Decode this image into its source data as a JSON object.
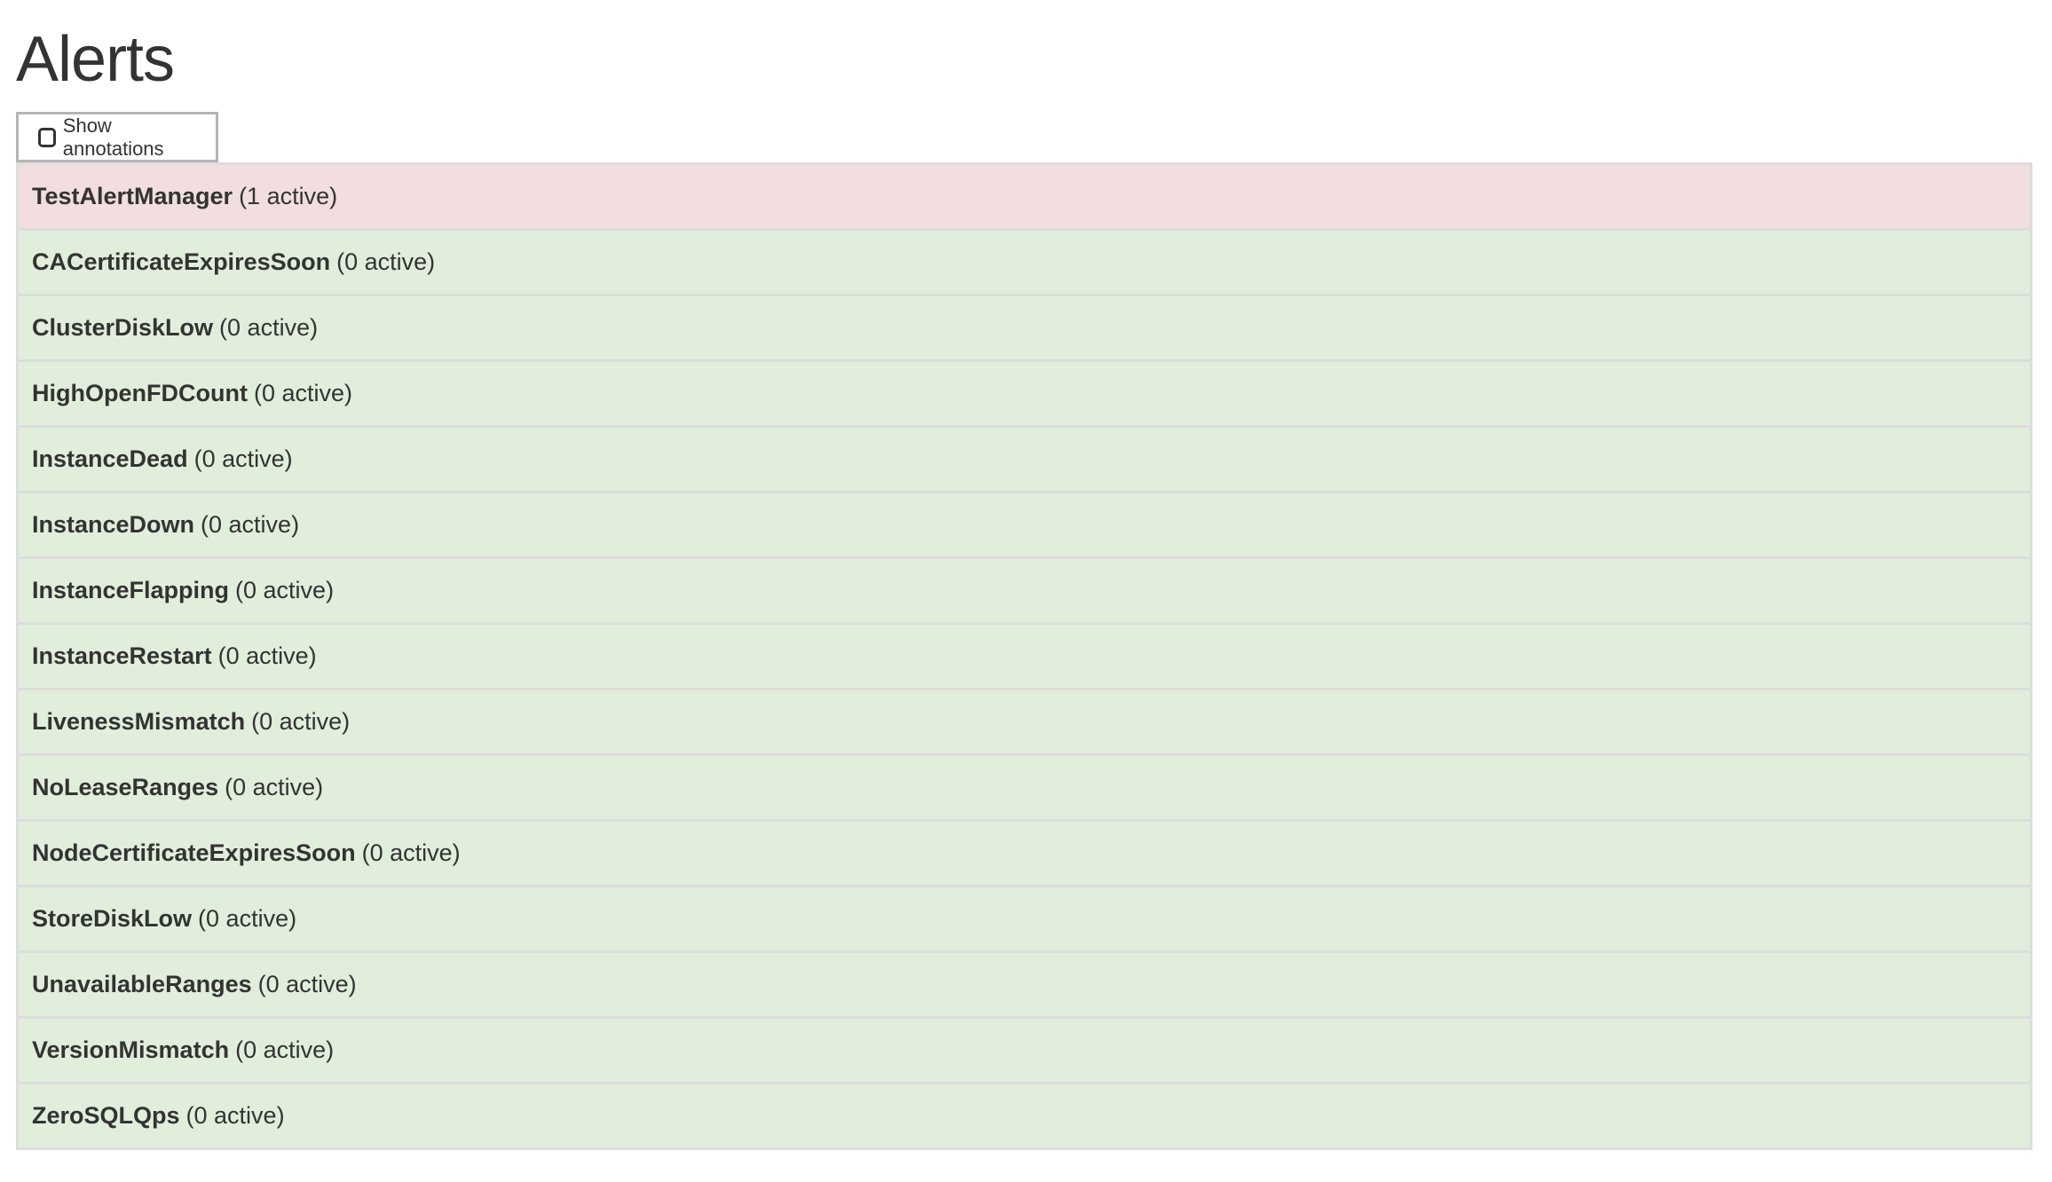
{
  "page_title": "Alerts",
  "show_annotations": {
    "label": "Show annotations",
    "checked": false
  },
  "colors": {
    "firing": "#f2dede",
    "inactive": "#e1eedb",
    "border": "#dddddd",
    "text": "#333333"
  },
  "alerts": [
    {
      "name": "TestAlertManager",
      "count": "(1 active)",
      "state": "firing"
    },
    {
      "name": "CACertificateExpiresSoon",
      "count": "(0 active)",
      "state": "inactive"
    },
    {
      "name": "ClusterDiskLow",
      "count": "(0 active)",
      "state": "inactive"
    },
    {
      "name": "HighOpenFDCount",
      "count": "(0 active)",
      "state": "inactive"
    },
    {
      "name": "InstanceDead",
      "count": "(0 active)",
      "state": "inactive"
    },
    {
      "name": "InstanceDown",
      "count": "(0 active)",
      "state": "inactive"
    },
    {
      "name": "InstanceFlapping",
      "count": "(0 active)",
      "state": "inactive"
    },
    {
      "name": "InstanceRestart",
      "count": "(0 active)",
      "state": "inactive"
    },
    {
      "name": "LivenessMismatch",
      "count": "(0 active)",
      "state": "inactive"
    },
    {
      "name": "NoLeaseRanges",
      "count": "(0 active)",
      "state": "inactive"
    },
    {
      "name": "NodeCertificateExpiresSoon",
      "count": "(0 active)",
      "state": "inactive"
    },
    {
      "name": "StoreDiskLow",
      "count": "(0 active)",
      "state": "inactive"
    },
    {
      "name": "UnavailableRanges",
      "count": "(0 active)",
      "state": "inactive"
    },
    {
      "name": "VersionMismatch",
      "count": "(0 active)",
      "state": "inactive"
    },
    {
      "name": "ZeroSQLQps",
      "count": "(0 active)",
      "state": "inactive"
    }
  ]
}
